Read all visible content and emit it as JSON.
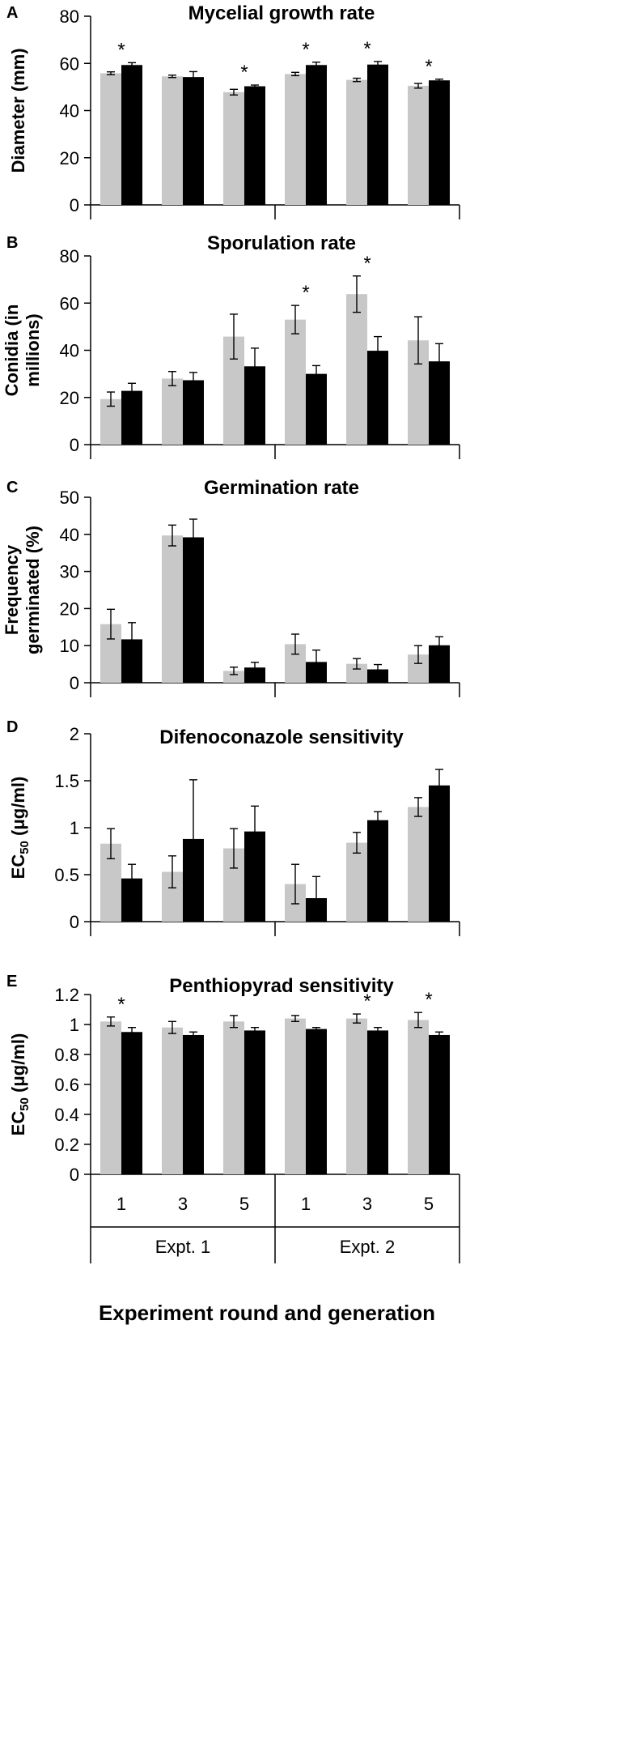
{
  "chart_data": [
    {
      "panel": "A",
      "type": "bar",
      "title": "Mycelial growth rate",
      "ylabel": "Diameter (mm)",
      "ylim": [
        0,
        80
      ],
      "yticks": [
        0,
        20,
        40,
        60,
        80
      ],
      "ytick_labels": [
        "0",
        "20",
        "40",
        "60",
        "80"
      ],
      "colors": [
        "#c8c8c8",
        "#000000"
      ],
      "series": [
        {
          "values": [
            55.8,
            54.5,
            47.8,
            55.5,
            53.0,
            50.5
          ],
          "errors": [
            0.6,
            0.5,
            1.2,
            0.7,
            0.7,
            1.0
          ]
        },
        {
          "values": [
            59.3,
            54.2,
            50.3,
            59.3,
            59.5,
            52.8
          ],
          "errors": [
            1.0,
            2.3,
            0.5,
            1.2,
            1.3,
            0.5
          ]
        }
      ],
      "significance": [
        "*",
        "",
        "*",
        "*",
        "*",
        "*"
      ]
    },
    {
      "panel": "B",
      "type": "bar",
      "title": "Sporulation rate",
      "ylabel": "Conidia (in millions)",
      "ylabel_lines": [
        "Conidia (in",
        "millions)"
      ],
      "ylim": [
        0,
        80
      ],
      "yticks": [
        0,
        20,
        40,
        60,
        80
      ],
      "ytick_labels": [
        "0",
        "20",
        "40",
        "60",
        "80"
      ],
      "colors": [
        "#c8c8c8",
        "#000000"
      ],
      "series": [
        {
          "values": [
            19.3,
            28.0,
            45.8,
            53.0,
            63.8,
            44.2
          ],
          "errors": [
            3.0,
            3.0,
            9.5,
            6.0,
            7.7,
            10.0
          ]
        },
        {
          "values": [
            22.8,
            27.3,
            33.2,
            30.0,
            39.8,
            35.3
          ],
          "errors": [
            3.2,
            3.3,
            7.7,
            3.5,
            6.0,
            7.5
          ]
        }
      ],
      "significance": [
        "",
        "",
        "",
        "*",
        "*",
        ""
      ]
    },
    {
      "panel": "C",
      "type": "bar",
      "title": "Germination rate",
      "ylabel": "Frequency germinated (%)",
      "ylabel_lines": [
        "Frequency",
        "germinated (%)"
      ],
      "ylim": [
        0,
        50
      ],
      "yticks": [
        0,
        10,
        20,
        30,
        40,
        50
      ],
      "ytick_labels": [
        "0",
        "10",
        "20",
        "30",
        "40",
        "50"
      ],
      "colors": [
        "#c8c8c8",
        "#000000"
      ],
      "series": [
        {
          "values": [
            15.8,
            39.7,
            3.2,
            10.4,
            5.1,
            7.6
          ],
          "errors": [
            4.0,
            2.8,
            1.0,
            2.7,
            1.4,
            2.4
          ]
        },
        {
          "values": [
            11.7,
            39.2,
            4.1,
            5.6,
            3.6,
            10.1
          ],
          "errors": [
            4.5,
            4.9,
            1.4,
            3.2,
            1.3,
            2.3
          ]
        }
      ],
      "significance": [
        "",
        "",
        "",
        "",
        "",
        ""
      ]
    },
    {
      "panel": "D",
      "type": "bar",
      "title": "Difenoconazole sensitivity",
      "ylabel": "EC50 (μg/ml)",
      "ylim": [
        0,
        2
      ],
      "yticks": [
        0,
        0.5,
        1,
        1.5,
        2
      ],
      "ytick_labels": [
        "0",
        "0.5",
        "1",
        "1.5",
        "2"
      ],
      "colors": [
        "#c8c8c8",
        "#000000"
      ],
      "series": [
        {
          "values": [
            0.83,
            0.53,
            0.78,
            0.4,
            0.84,
            1.22
          ],
          "errors": [
            0.16,
            0.17,
            0.21,
            0.21,
            0.11,
            0.1
          ]
        },
        {
          "values": [
            0.46,
            0.88,
            0.96,
            0.25,
            1.08,
            1.45
          ],
          "errors": [
            0.15,
            0.63,
            0.27,
            0.23,
            0.09,
            0.17
          ]
        }
      ],
      "significance": [
        "",
        "",
        "",
        "",
        "",
        ""
      ]
    },
    {
      "panel": "E",
      "type": "bar",
      "title": "Penthiopyrad sensitivity",
      "ylabel": "EC50 (μg/ml)",
      "ylim": [
        0,
        1.2
      ],
      "yticks": [
        0,
        0.2,
        0.4,
        0.6,
        0.8,
        1,
        1.2
      ],
      "ytick_labels": [
        "0",
        "0.2",
        "0.4",
        "0.6",
        "0.8",
        "1",
        "1.2"
      ],
      "colors": [
        "#c8c8c8",
        "#000000"
      ],
      "series": [
        {
          "values": [
            1.02,
            0.98,
            1.02,
            1.04,
            1.04,
            1.03
          ],
          "errors": [
            0.03,
            0.04,
            0.04,
            0.02,
            0.03,
            0.05
          ]
        },
        {
          "values": [
            0.95,
            0.93,
            0.96,
            0.97,
            0.96,
            0.93
          ],
          "errors": [
            0.03,
            0.02,
            0.02,
            0.01,
            0.02,
            0.02
          ]
        }
      ],
      "significance": [
        "*",
        "",
        "",
        "",
        "*",
        "*"
      ]
    }
  ],
  "x_tick_labels": [
    "1",
    "3",
    "5",
    "1",
    "3",
    "5"
  ],
  "group_labels": [
    "Expt. 1",
    "Expt. 2"
  ],
  "xlabel": "Experiment round and generation"
}
